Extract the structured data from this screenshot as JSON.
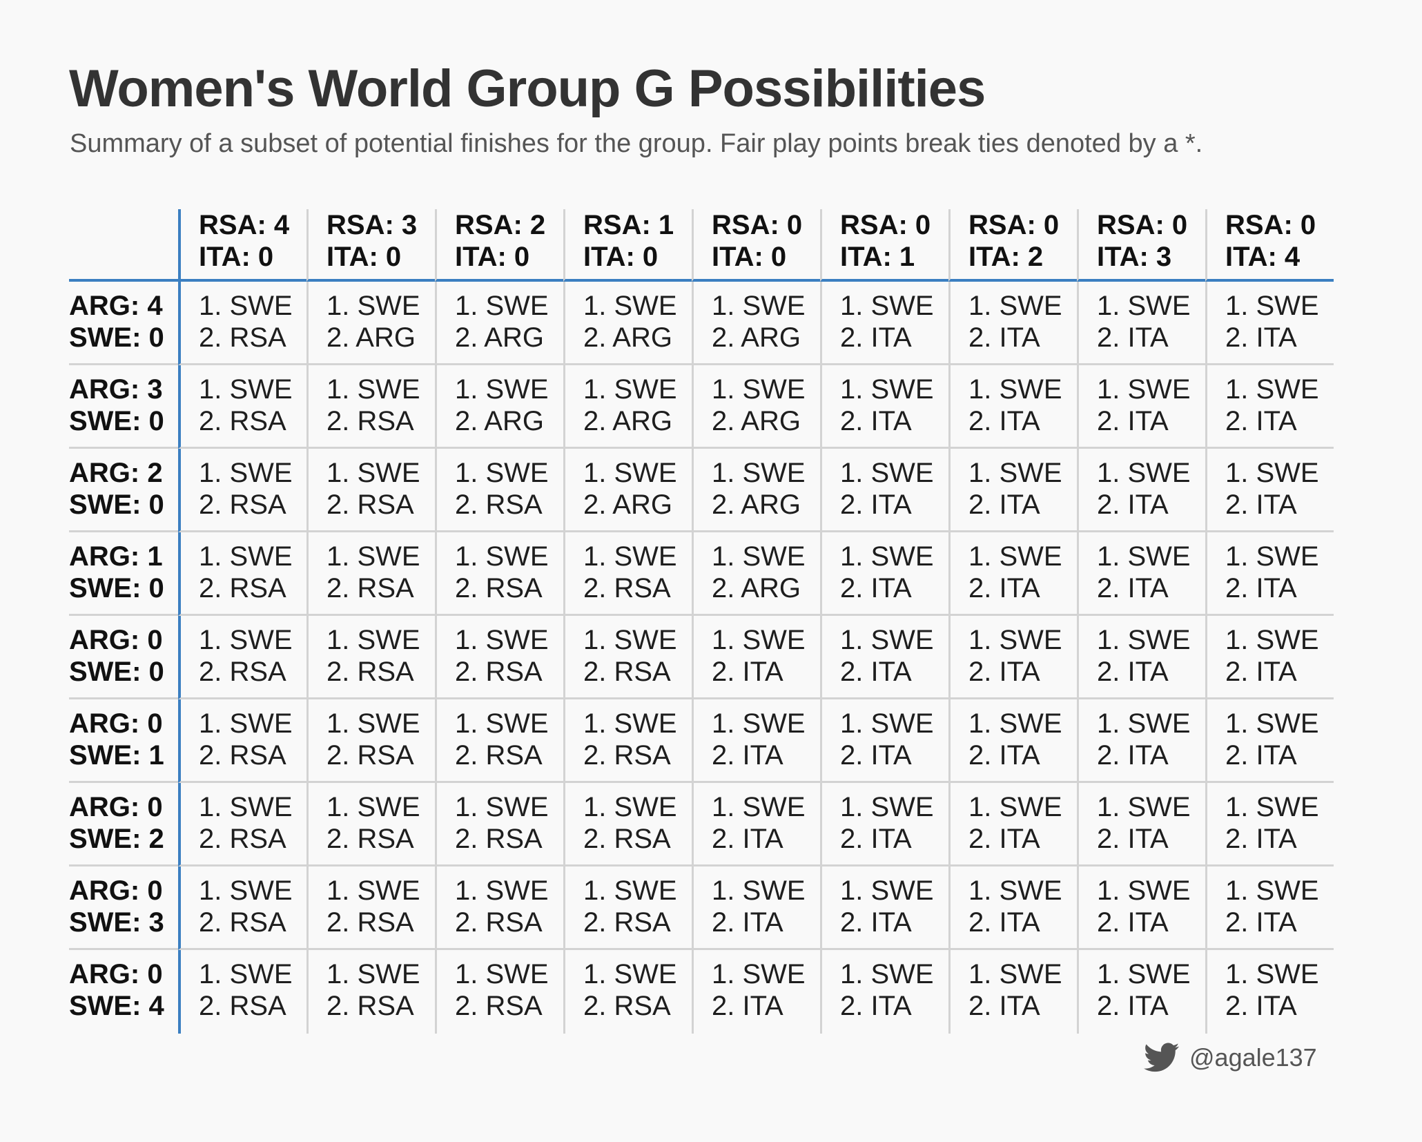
{
  "title": "Women's World Group G Possibilities",
  "subtitle": "Summary of a subset of potential finishes for the group. Fair play points break ties denoted by a *.",
  "credit": {
    "icon": "twitter-bird-icon",
    "handle": "@agale137"
  },
  "colors": {
    "accent_line": "#3b7fc1",
    "grid_line": "#d3d3d3",
    "background": "#f9f9f9"
  },
  "chart_data": {
    "type": "table",
    "columns": [
      {
        "line1": "RSA: 4",
        "line2": "ITA: 0"
      },
      {
        "line1": "RSA: 3",
        "line2": "ITA: 0"
      },
      {
        "line1": "RSA: 2",
        "line2": "ITA: 0"
      },
      {
        "line1": "RSA: 1",
        "line2": "ITA: 0"
      },
      {
        "line1": "RSA: 0",
        "line2": "ITA: 0"
      },
      {
        "line1": "RSA: 0",
        "line2": "ITA: 1"
      },
      {
        "line1": "RSA: 0",
        "line2": "ITA: 2"
      },
      {
        "line1": "RSA: 0",
        "line2": "ITA: 3"
      },
      {
        "line1": "RSA: 0",
        "line2": "ITA: 4"
      }
    ],
    "rows": [
      {
        "line1": "ARG: 4",
        "line2": "SWE: 0",
        "second": [
          "RSA",
          "ARG",
          "ARG",
          "ARG",
          "ARG",
          "ITA",
          "ITA",
          "ITA",
          "ITA"
        ]
      },
      {
        "line1": "ARG: 3",
        "line2": "SWE: 0",
        "second": [
          "RSA",
          "RSA",
          "ARG",
          "ARG",
          "ARG",
          "ITA",
          "ITA",
          "ITA",
          "ITA"
        ]
      },
      {
        "line1": "ARG: 2",
        "line2": "SWE: 0",
        "second": [
          "RSA",
          "RSA",
          "RSA",
          "ARG",
          "ARG",
          "ITA",
          "ITA",
          "ITA",
          "ITA"
        ]
      },
      {
        "line1": "ARG: 1",
        "line2": "SWE: 0",
        "second": [
          "RSA",
          "RSA",
          "RSA",
          "RSA",
          "ARG",
          "ITA",
          "ITA",
          "ITA",
          "ITA"
        ]
      },
      {
        "line1": "ARG: 0",
        "line2": "SWE: 0",
        "second": [
          "RSA",
          "RSA",
          "RSA",
          "RSA",
          "ITA",
          "ITA",
          "ITA",
          "ITA",
          "ITA"
        ]
      },
      {
        "line1": "ARG: 0",
        "line2": "SWE: 1",
        "second": [
          "RSA",
          "RSA",
          "RSA",
          "RSA",
          "ITA",
          "ITA",
          "ITA",
          "ITA",
          "ITA"
        ]
      },
      {
        "line1": "ARG: 0",
        "line2": "SWE: 2",
        "second": [
          "RSA",
          "RSA",
          "RSA",
          "RSA",
          "ITA",
          "ITA",
          "ITA",
          "ITA",
          "ITA"
        ]
      },
      {
        "line1": "ARG: 0",
        "line2": "SWE: 3",
        "second": [
          "RSA",
          "RSA",
          "RSA",
          "RSA",
          "ITA",
          "ITA",
          "ITA",
          "ITA",
          "ITA"
        ]
      },
      {
        "line1": "ARG: 0",
        "line2": "SWE: 4",
        "second": [
          "RSA",
          "RSA",
          "RSA",
          "RSA",
          "ITA",
          "ITA",
          "ITA",
          "ITA",
          "ITA"
        ]
      }
    ],
    "first_place": "SWE"
  }
}
